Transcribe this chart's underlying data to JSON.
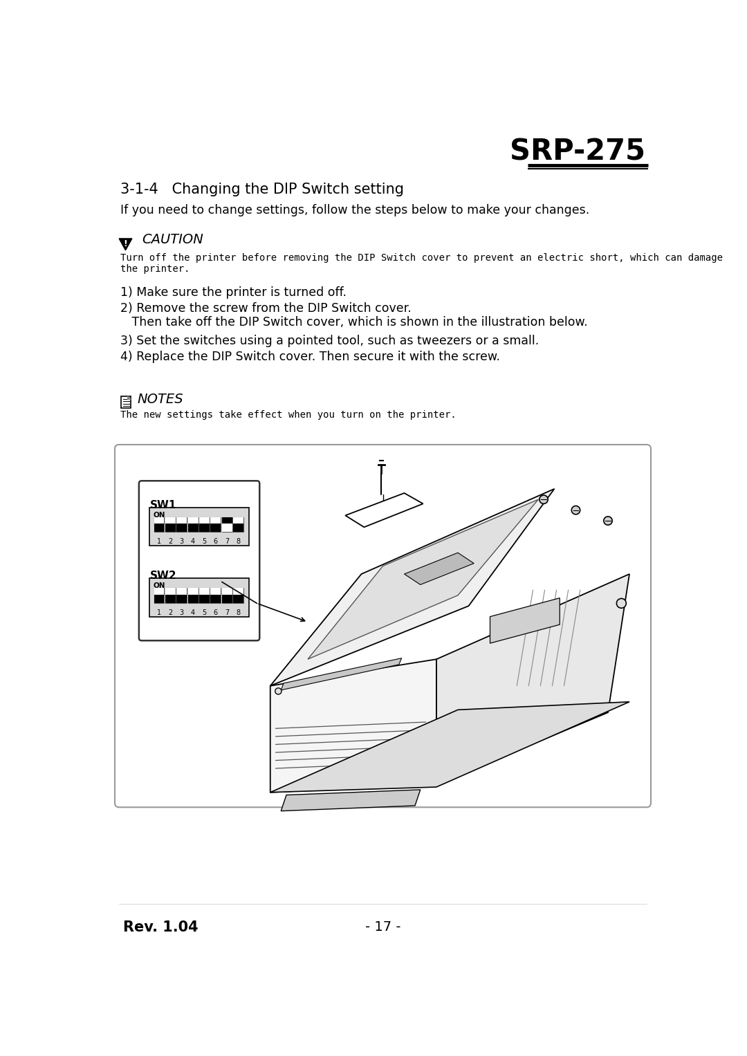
{
  "page_bg": "#ffffff",
  "title_model": "SRP-275",
  "section_title": "3-1-4   Changing the DIP Switch setting",
  "intro_text": "If you need to change settings, follow the steps below to make your changes.",
  "caution_header": "CAUTION",
  "caution_body_line1": "Turn off the printer before removing the DIP Switch cover to prevent an electric short, which can damage",
  "caution_body_line2": "the printer.",
  "steps": [
    "1) Make sure the printer is turned off.",
    "2) Remove the screw from the DIP Switch cover.",
    "   Then take off the DIP Switch cover, which is shown in the illustration below.",
    "3) Set the switches using a pointed tool, such as tweezers or a small.",
    "4) Replace the DIP Switch cover. Then secure it with the screw."
  ],
  "notes_header": "NOTES",
  "notes_body": "The new settings take effect when you turn on the printer.",
  "footer_left": "Rev. 1.04",
  "footer_center": "- 17 -",
  "text_color": "#000000",
  "sw1_states": [
    true,
    true,
    true,
    true,
    true,
    true,
    false,
    true
  ],
  "sw2_states": [
    true,
    true,
    true,
    true,
    true,
    true,
    true,
    true
  ]
}
